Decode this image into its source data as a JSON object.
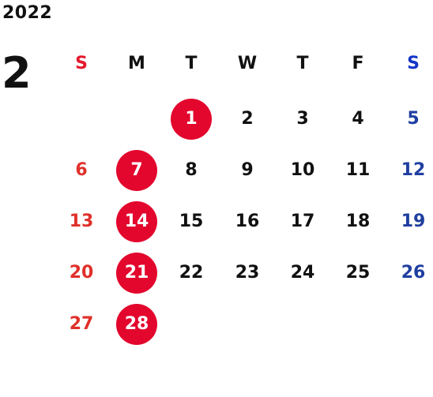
{
  "calendar": {
    "year": "2022",
    "month": "2",
    "weekdays": [
      "S",
      "M",
      "T",
      "W",
      "T",
      "F",
      "S"
    ],
    "first_weekday_index": 2,
    "days": [
      "1",
      "2",
      "3",
      "4",
      "5",
      "6",
      "7",
      "8",
      "9",
      "10",
      "11",
      "12",
      "13",
      "14",
      "15",
      "16",
      "17",
      "18",
      "19",
      "20",
      "21",
      "22",
      "23",
      "24",
      "25",
      "26",
      "27",
      "28"
    ],
    "highlighted_days": [
      "1",
      "7",
      "14",
      "21",
      "28"
    ],
    "colors": {
      "text": "#111111",
      "sunday": "#e0302a",
      "saturday": "#1f3fa0",
      "highlight_fill": "#e3062d",
      "highlight_text": "#ffffff"
    }
  }
}
